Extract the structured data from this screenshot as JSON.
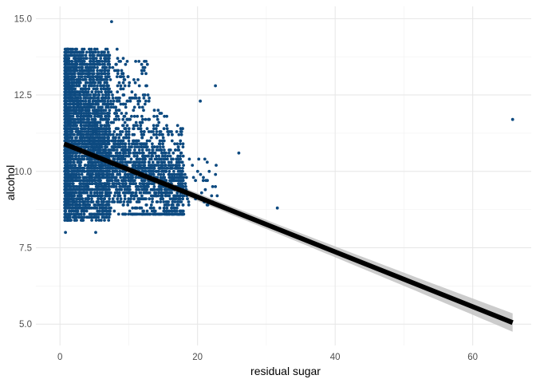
{
  "chart_data": {
    "type": "scatter",
    "title": "",
    "xlabel": "residual sugar",
    "ylabel": "alcohol",
    "xlim": [
      -3.5,
      68.5
    ],
    "ylim": [
      4.3,
      15.4
    ],
    "x_ticks": [
      0,
      20,
      40,
      60
    ],
    "x_tick_labels": [
      "0",
      "20",
      "40",
      "60"
    ],
    "y_ticks": [
      5.0,
      7.5,
      10.0,
      12.5,
      15.0
    ],
    "y_tick_labels": [
      "5.0",
      "7.5",
      "10.0",
      "12.5",
      "15.0"
    ],
    "grid": true,
    "legend": "none",
    "point_color": "#0d4a80",
    "fit_color": "#000000",
    "band_color": "#bfbfbf",
    "points_summary": {
      "note": "dense cloud of several thousand points; main mass x 0.6-20, y 8.0-14.2",
      "core_x_range": [
        0.6,
        20
      ],
      "core_y_range": [
        8.0,
        14.2
      ]
    },
    "notable_points": [
      {
        "x": 7.5,
        "y": 14.9
      },
      {
        "x": 8.3,
        "y": 14.0
      },
      {
        "x": 11.0,
        "y": 13.6
      },
      {
        "x": 22.6,
        "y": 12.8
      },
      {
        "x": 26.0,
        "y": 10.6
      },
      {
        "x": 31.6,
        "y": 8.8
      },
      {
        "x": 65.8,
        "y": 11.7
      },
      {
        "x": 0.8,
        "y": 8.0
      },
      {
        "x": 5.2,
        "y": 8.0
      },
      {
        "x": 20.4,
        "y": 12.3
      }
    ],
    "fit_line": {
      "method": "linear",
      "x": [
        0.6,
        65.8
      ],
      "y": [
        10.9,
        5.05
      ],
      "ci_halfwidth_at_ends": [
        0.12,
        0.3
      ]
    }
  }
}
